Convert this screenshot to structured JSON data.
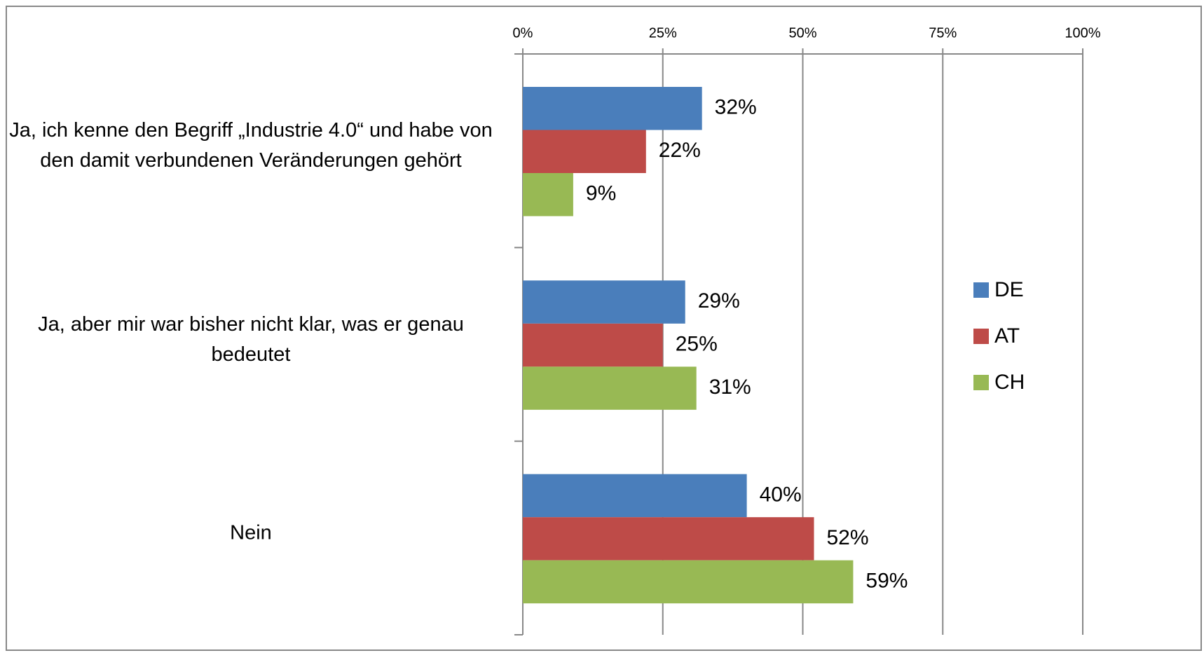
{
  "chart_data": {
    "type": "bar",
    "orientation": "horizontal",
    "categories": [
      "Ja, ich kenne den Begriff „Industrie 4.0“ und habe von den damit verbundenen Veränderungen gehört",
      "Ja, aber mir war bisher nicht klar, was er genau bedeutet",
      "Nein"
    ],
    "series": [
      {
        "name": "DE",
        "color": "#4a7ebb",
        "values": [
          32,
          29,
          40
        ],
        "value_labels": [
          "32%",
          "29%",
          "40%"
        ]
      },
      {
        "name": "AT",
        "color": "#be4b48",
        "values": [
          22,
          25,
          52
        ],
        "value_labels": [
          "22%",
          "25%",
          "52%"
        ]
      },
      {
        "name": "CH",
        "color": "#98b954",
        "values": [
          9,
          31,
          59
        ],
        "value_labels": [
          "9%",
          "31%",
          "59%"
        ]
      }
    ],
    "xlim": [
      0,
      100
    ],
    "xticks": [
      {
        "value": 0,
        "label": "0%"
      },
      {
        "value": 25,
        "label": "25%"
      },
      {
        "value": 50,
        "label": "50%"
      },
      {
        "value": 75,
        "label": "75%"
      },
      {
        "value": 100,
        "label": "100%"
      }
    ],
    "grid": true,
    "legend": "right"
  }
}
